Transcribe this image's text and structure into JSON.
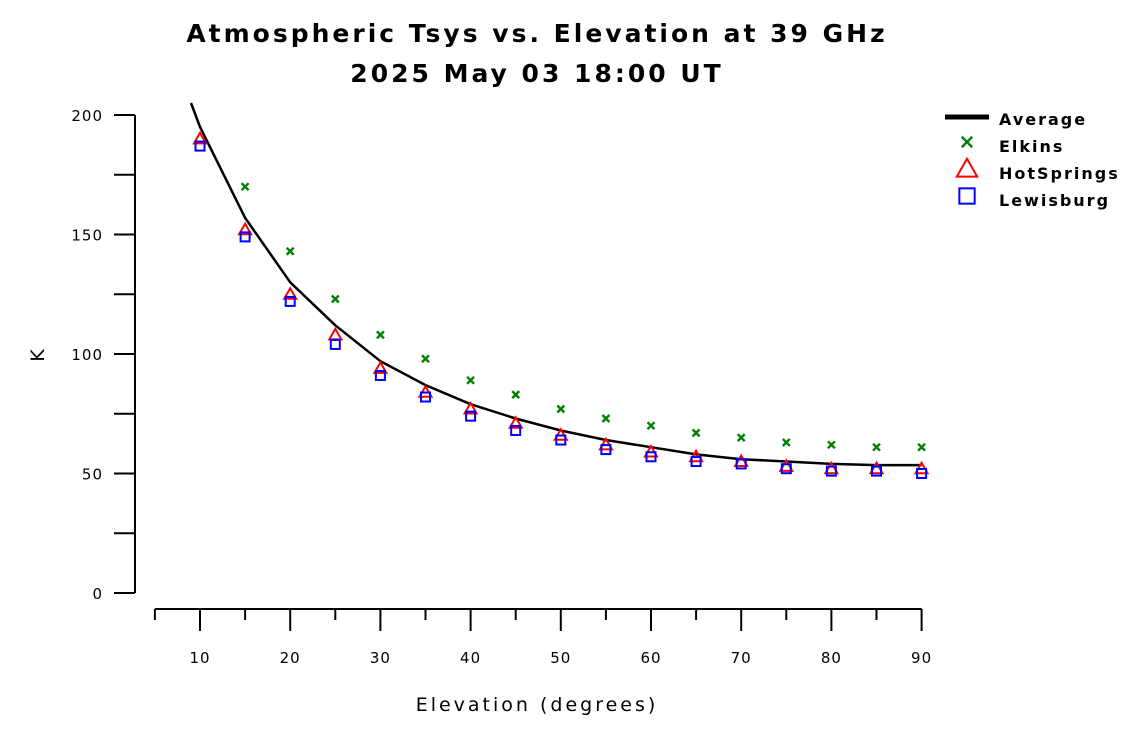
{
  "chart_data": {
    "type": "line",
    "title": "Atmospheric Tsys vs. Elevation at 39 GHz",
    "subtitle": "2025 May 03 18:00 UT",
    "xlabel": "Elevation (degrees)",
    "ylabel": "K",
    "xlim": [
      5,
      93
    ],
    "ylim": [
      0,
      200
    ],
    "x_ticks": [
      "10",
      "20",
      "30",
      "40",
      "50",
      "60",
      "70",
      "80",
      "90"
    ],
    "y_ticks": [
      "0",
      "50",
      "100",
      "150",
      "200"
    ],
    "legend_position": "top-right, outside plot",
    "grid": false,
    "average_curve": {
      "x": [
        9,
        10,
        15,
        20,
        25,
        30,
        35,
        40,
        45,
        50,
        55,
        60,
        65,
        70,
        75,
        80,
        85,
        90
      ],
      "y": [
        205,
        195,
        157,
        130,
        112,
        97,
        87,
        79,
        73,
        68,
        64,
        61,
        58,
        56,
        55,
        54,
        53.5,
        53.5
      ]
    },
    "series": [
      {
        "name": "Average",
        "marker": "line",
        "color": "#000000"
      },
      {
        "name": "Elkins",
        "marker": "x",
        "color": "#008000",
        "x": [
          15,
          20,
          25,
          30,
          35,
          40,
          45,
          50,
          55,
          60,
          65,
          70,
          75,
          80,
          85,
          90
        ],
        "y": [
          170,
          143,
          123,
          108,
          98,
          89,
          83,
          77,
          73,
          70,
          67,
          65,
          63,
          62,
          61,
          61
        ]
      },
      {
        "name": "HotSprings",
        "marker": "triangle",
        "color": "#ff0000",
        "x": [
          10,
          15,
          20,
          25,
          30,
          35,
          40,
          45,
          50,
          55,
          60,
          65,
          70,
          75,
          80,
          85,
          90
        ],
        "y": [
          190,
          152,
          125,
          108,
          94,
          84,
          77,
          71,
          66,
          62,
          59,
          57,
          55,
          53,
          52,
          52,
          52
        ]
      },
      {
        "name": "Lewisburg",
        "marker": "square",
        "color": "#0000ff",
        "x": [
          10,
          15,
          20,
          25,
          30,
          35,
          40,
          45,
          50,
          55,
          60,
          65,
          70,
          75,
          80,
          85,
          90
        ],
        "y": [
          187,
          149,
          122,
          104,
          91,
          82,
          74,
          68,
          64,
          60,
          57,
          55,
          54,
          52,
          51,
          51,
          50
        ]
      }
    ]
  }
}
